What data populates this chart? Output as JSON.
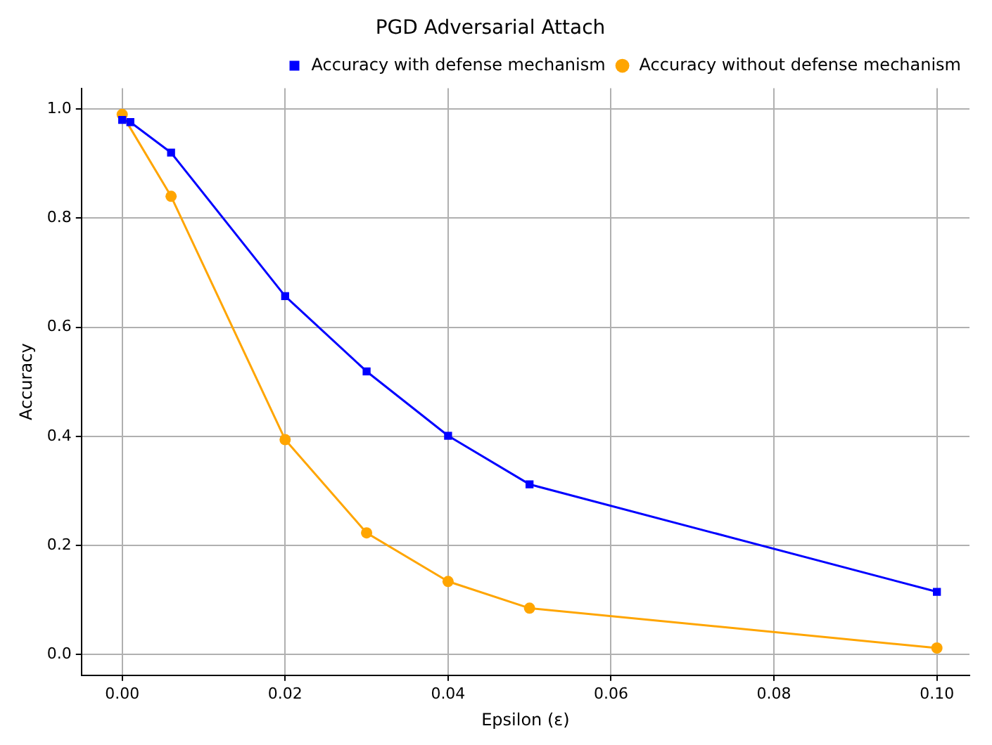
{
  "chart_data": {
    "type": "line",
    "title": "PGD Adversarial Attach",
    "xlabel": "Epsilon (ε)",
    "ylabel": "Accuracy",
    "x": [
      0,
      0.001,
      0.006,
      0.02,
      0.03,
      0.04,
      0.05,
      0.1
    ],
    "series": [
      {
        "name": "Accuracy without defense mechanism",
        "color": "#ffa500",
        "marker": "circle",
        "values": [
          0.99,
          null,
          0.84,
          0.394,
          0.223,
          0.134,
          0.085,
          0.012
        ]
      },
      {
        "name": "Accuracy with defense mechanism",
        "color": "#0000ff",
        "marker": "square",
        "values": [
          0.98,
          0.976,
          0.92,
          0.657,
          0.519,
          0.401,
          0.312,
          0.115
        ]
      }
    ],
    "xlim": [
      -0.005,
      0.104
    ],
    "ylim": [
      -0.038,
      1.038
    ],
    "xticks": [
      {
        "value": 0,
        "label": "0.00"
      },
      {
        "value": 0.02,
        "label": "0.02"
      },
      {
        "value": 0.04,
        "label": "0.04"
      },
      {
        "value": 0.06,
        "label": "0.06"
      },
      {
        "value": 0.08,
        "label": "0.08"
      },
      {
        "value": 0.1,
        "label": "0.10"
      }
    ],
    "yticks": [
      {
        "value": 0,
        "label": "0.0"
      },
      {
        "value": 0.2,
        "label": "0.2"
      },
      {
        "value": 0.4,
        "label": "0.4"
      },
      {
        "value": 0.6,
        "label": "0.6"
      },
      {
        "value": 0.8,
        "label": "0.8"
      },
      {
        "value": 1,
        "label": "1.0"
      }
    ],
    "grid": true,
    "legend": "top right",
    "line_style": "solid"
  }
}
